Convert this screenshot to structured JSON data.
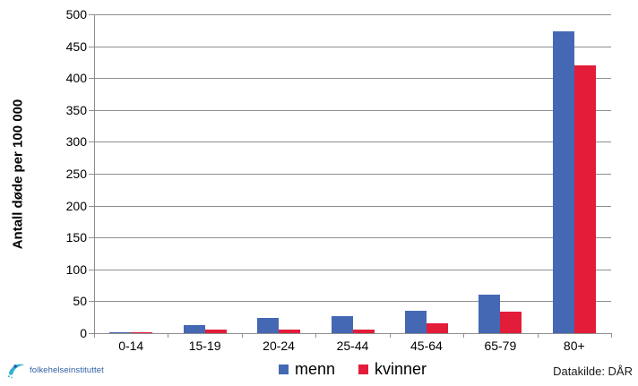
{
  "chart_data": {
    "type": "bar",
    "title": "",
    "ylabel": "Antall døde per 100 000",
    "xlabel": "",
    "categories": [
      "0-14",
      "15-19",
      "20-24",
      "25-44",
      "45-64",
      "65-79",
      "80+"
    ],
    "series": [
      {
        "name": "menn",
        "color": "#4568b4",
        "values": [
          2,
          12,
          24,
          27,
          35,
          60,
          473
        ]
      },
      {
        "name": "kvinner",
        "color": "#e31c3a",
        "values": [
          1.5,
          5,
          6,
          6,
          15,
          34,
          420
        ]
      }
    ],
    "ylim": [
      0,
      500
    ],
    "ytick_step": 50,
    "grid": true,
    "legend_position": "bottom"
  },
  "footer": {
    "source_label": "Datakilde: DÅR",
    "logo_text": "folkehelseinstituttet"
  },
  "colors": {
    "grid": "#8e8e8e",
    "axis": "#8e8e8e",
    "text": "#000000",
    "logo_teal": "#35b0cf",
    "logo_blue": "#265da8"
  }
}
